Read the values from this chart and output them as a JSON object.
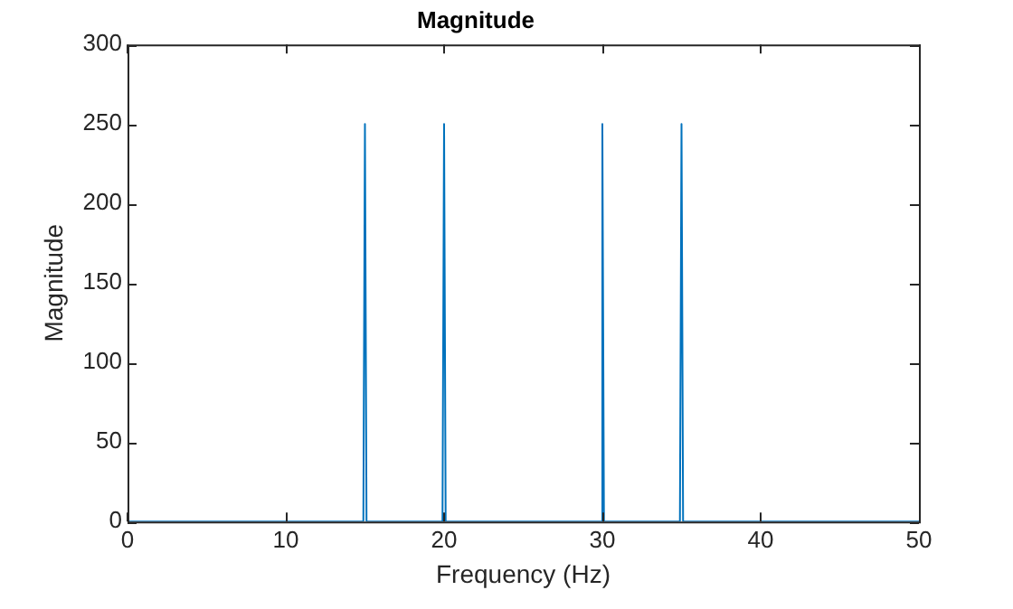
{
  "chart_data": {
    "type": "line",
    "title": "Magnitude",
    "xlabel": "Frequency (Hz)",
    "ylabel": "Magnitude",
    "series": [
      {
        "color": "#0072bd",
        "x": [
          0,
          14.9,
          15,
          15.1,
          19.9,
          20,
          20.1,
          29.9,
          30,
          30.1,
          34.9,
          35,
          35.1,
          50
        ],
        "values": [
          0,
          0,
          250,
          0,
          0,
          250,
          0,
          0,
          250,
          0,
          0,
          250,
          0,
          0
        ]
      }
    ],
    "xlim": [
      0,
      50
    ],
    "xticks": [
      0,
      10,
      20,
      30,
      40,
      50
    ],
    "ylim": [
      0,
      300
    ],
    "yticks": [
      0,
      50,
      100,
      150,
      200,
      250,
      300
    ],
    "grid": false,
    "legend": false,
    "marker": "none",
    "line_style": "solid"
  }
}
